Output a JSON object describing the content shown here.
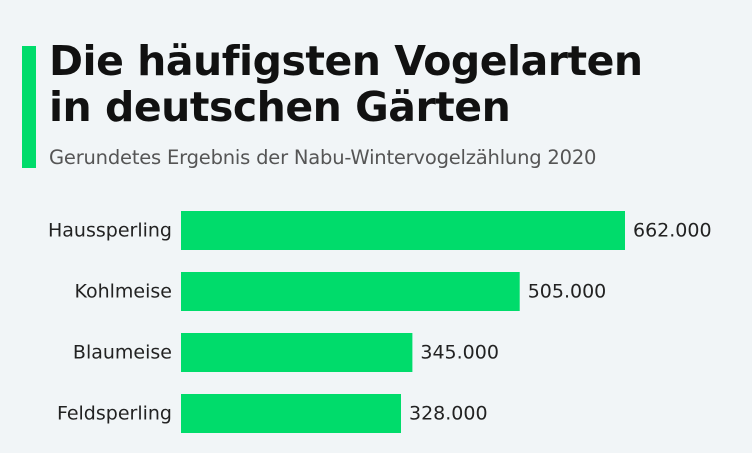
{
  "colors": {
    "accent": "#00dc6b",
    "bar": "#00dc6b",
    "background": "#f1f5f7"
  },
  "header": {
    "title_line1": "Die häufigsten Vogelarten",
    "title_line2": "in deutschen Gärten",
    "subtitle": "Gerundetes Ergebnis der Nabu-Wintervogelzählung 2020"
  },
  "chart_data": {
    "type": "bar",
    "orientation": "horizontal",
    "title": "Die häufigsten Vogelarten in deutschen Gärten",
    "subtitle": "Gerundetes Ergebnis der Nabu-Wintervogelzählung 2020",
    "categories": [
      "Haussperling",
      "Kohlmeise",
      "Blaumeise",
      "Feldsperling"
    ],
    "values": [
      662000,
      505000,
      345000,
      328000
    ],
    "value_labels": [
      "662.000",
      "505.000",
      "345.000",
      "328.000"
    ],
    "xlim": [
      0,
      662000
    ],
    "grid": false,
    "legend": "none"
  }
}
